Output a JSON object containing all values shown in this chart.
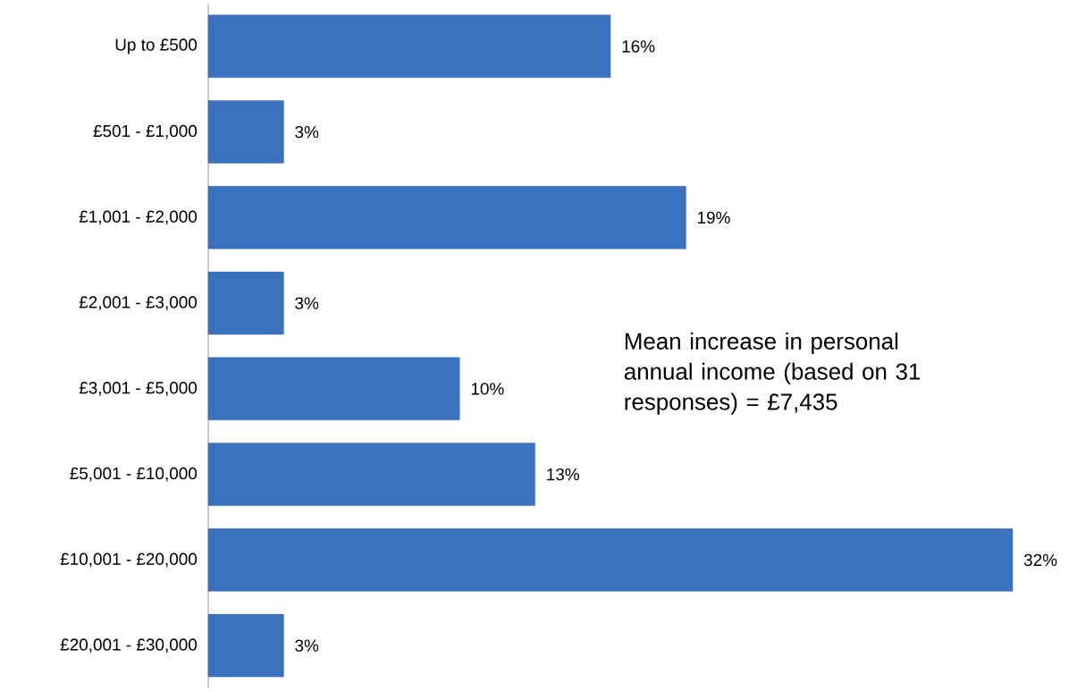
{
  "chart_data": {
    "type": "bar",
    "orientation": "horizontal",
    "categories": [
      "Up to £500",
      "£501 - £1,000",
      "£1,001 - £2,000",
      "£2,001 - £3,000",
      "£3,001 - £5,000",
      "£5,001 - £10,000",
      "£10,001 - £20,000",
      "£20,001 - £30,000"
    ],
    "values": [
      16,
      3,
      19,
      3,
      10,
      13,
      32,
      3
    ],
    "value_labels": [
      "16%",
      "3%",
      "19%",
      "3%",
      "10%",
      "13%",
      "32%",
      "3%"
    ],
    "color": "#3b72bf",
    "annotations": [
      "Mean increase in personal annual income  (based on 31 responses) = £7,435"
    ]
  }
}
